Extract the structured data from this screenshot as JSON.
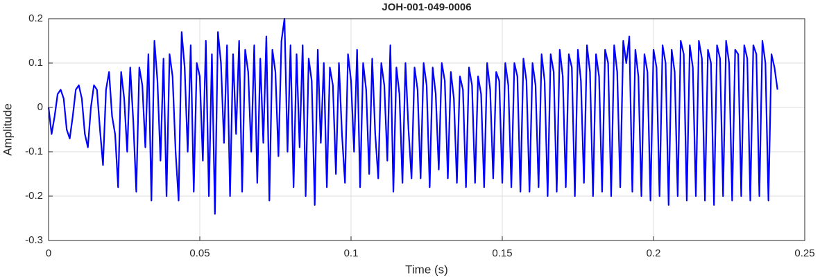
{
  "chart_data": {
    "type": "line",
    "title": "JOH-001-049-0006",
    "x_label": "Time (s)",
    "y_label": "Amplitude",
    "xlim": [
      0,
      0.25
    ],
    "xticks": [
      0,
      0.05,
      0.1,
      0.15,
      0.2,
      0.25
    ],
    "ylim": [
      -0.3,
      0.2
    ],
    "yticks": [
      -0.3,
      -0.2,
      -0.1,
      0,
      0.1,
      0.2
    ],
    "grid": true,
    "series": [
      {
        "color": "#0000ff",
        "x": [
          0,
          0.001,
          0.002,
          0.003,
          0.004,
          0.005,
          0.006,
          0.007,
          0.008,
          0.009,
          0.01,
          0.011,
          0.012,
          0.013,
          0.014,
          0.015,
          0.016,
          0.017,
          0.018,
          0.019,
          0.02,
          0.021,
          0.022,
          0.023,
          0.024,
          0.025,
          0.026,
          0.027,
          0.028,
          0.029,
          0.03,
          0.031,
          0.032,
          0.033,
          0.034,
          0.035,
          0.036,
          0.037,
          0.038,
          0.039,
          0.04,
          0.041,
          0.042,
          0.043,
          0.044,
          0.045,
          0.046,
          0.047,
          0.048,
          0.049,
          0.05,
          0.051,
          0.052,
          0.053,
          0.054,
          0.055,
          0.056,
          0.057,
          0.058,
          0.059,
          0.06,
          0.061,
          0.062,
          0.063,
          0.064,
          0.065,
          0.066,
          0.067,
          0.068,
          0.069,
          0.07,
          0.071,
          0.072,
          0.073,
          0.074,
          0.075,
          0.076,
          0.077,
          0.078,
          0.079,
          0.08,
          0.081,
          0.082,
          0.083,
          0.084,
          0.085,
          0.086,
          0.087,
          0.088,
          0.089,
          0.09,
          0.091,
          0.092,
          0.093,
          0.094,
          0.095,
          0.096,
          0.097,
          0.098,
          0.099,
          0.1,
          0.101,
          0.102,
          0.103,
          0.104,
          0.105,
          0.106,
          0.107,
          0.108,
          0.109,
          0.11,
          0.111,
          0.112,
          0.113,
          0.114,
          0.115,
          0.116,
          0.117,
          0.118,
          0.119,
          0.12,
          0.121,
          0.122,
          0.123,
          0.124,
          0.125,
          0.126,
          0.127,
          0.128,
          0.129,
          0.13,
          0.131,
          0.132,
          0.133,
          0.134,
          0.135,
          0.136,
          0.137,
          0.138,
          0.139,
          0.14,
          0.141,
          0.142,
          0.143,
          0.144,
          0.145,
          0.146,
          0.147,
          0.148,
          0.149,
          0.15,
          0.151,
          0.152,
          0.153,
          0.154,
          0.155,
          0.156,
          0.157,
          0.158,
          0.159,
          0.16,
          0.161,
          0.162,
          0.163,
          0.164,
          0.165,
          0.166,
          0.167,
          0.168,
          0.169,
          0.17,
          0.171,
          0.172,
          0.173,
          0.174,
          0.175,
          0.176,
          0.177,
          0.178,
          0.179,
          0.18,
          0.181,
          0.182,
          0.183,
          0.184,
          0.185,
          0.186,
          0.187,
          0.188,
          0.189,
          0.19,
          0.191,
          0.192,
          0.193,
          0.194,
          0.195,
          0.196,
          0.197,
          0.198,
          0.199,
          0.2,
          0.201,
          0.202,
          0.203,
          0.204,
          0.205,
          0.206,
          0.207,
          0.208,
          0.209,
          0.21,
          0.211,
          0.212,
          0.213,
          0.214,
          0.215,
          0.216,
          0.217,
          0.218,
          0.219,
          0.22,
          0.221,
          0.222,
          0.223,
          0.224,
          0.225,
          0.226,
          0.227,
          0.228,
          0.229,
          0.23,
          0.231,
          0.232,
          0.233,
          0.234,
          0.235,
          0.236,
          0.237,
          0.238,
          0.239,
          0.24,
          0.241
        ],
        "values": [
          0,
          -0.06,
          -0.02,
          0.03,
          0.04,
          0.02,
          -0.05,
          -0.07,
          -0.02,
          0.04,
          0.05,
          0.02,
          -0.06,
          -0.09,
          0.0,
          0.05,
          0.04,
          -0.05,
          -0.13,
          0.04,
          0.08,
          -0.02,
          -0.06,
          -0.18,
          0.08,
          0.02,
          -0.1,
          0.09,
          -0.03,
          -0.19,
          0.09,
          0.05,
          -0.09,
          0.12,
          -0.21,
          0.15,
          0.06,
          -0.12,
          0.11,
          -0.2,
          0.12,
          0.07,
          -0.1,
          -0.21,
          0.17,
          0.09,
          -0.1,
          0.14,
          -0.19,
          0.1,
          0.07,
          -0.12,
          0.15,
          -0.2,
          0.12,
          -0.24,
          0.17,
          0.1,
          -0.08,
          0.14,
          -0.2,
          0.12,
          -0.06,
          0.15,
          -0.19,
          0.13,
          0.08,
          -0.1,
          0.14,
          -0.17,
          0.11,
          -0.08,
          0.16,
          -0.21,
          0.13,
          0.08,
          -0.11,
          0.15,
          0.2,
          -0.1,
          0.14,
          -0.18,
          0.12,
          -0.09,
          0.14,
          -0.2,
          0.11,
          0.06,
          -0.22,
          0.13,
          -0.08,
          0.1,
          -0.18,
          0.09,
          0.05,
          -0.15,
          0.1,
          -0.06,
          -0.17,
          0.12,
          0.06,
          -0.1,
          0.13,
          -0.18,
          0.1,
          0.04,
          -0.15,
          0.11,
          -0.06,
          -0.16,
          0.1,
          0.05,
          -0.12,
          0.14,
          -0.19,
          0.09,
          0.03,
          -0.17,
          0.1,
          -0.05,
          -0.16,
          0.09,
          0.04,
          -0.16,
          0.1,
          0.05,
          -0.18,
          0.09,
          0.03,
          -0.14,
          0.1,
          0.06,
          -0.16,
          0.08,
          0.02,
          -0.17,
          0.07,
          0.04,
          -0.18,
          0.09,
          0.05,
          -0.17,
          0.07,
          0.03,
          -0.18,
          0.1,
          0.04,
          -0.16,
          0.08,
          0.06,
          -0.17,
          0.1,
          0.05,
          -0.18,
          0.1,
          0.07,
          -0.19,
          0.11,
          0.06,
          -0.19,
          0.1,
          0.05,
          -0.18,
          0.12,
          0.06,
          -0.2,
          0.12,
          0.08,
          -0.19,
          0.13,
          0.07,
          -0.18,
          0.12,
          0.09,
          -0.2,
          0.13,
          0.06,
          -0.17,
          0.14,
          0.08,
          -0.2,
          0.12,
          0.07,
          -0.19,
          0.13,
          0.1,
          -0.2,
          0.14,
          0.08,
          -0.18,
          0.15,
          0.1,
          0.16,
          -0.19,
          0.13,
          0.07,
          -0.2,
          0.12,
          0.08,
          -0.21,
          0.13,
          0.09,
          -0.2,
          0.14,
          0.1,
          -0.22,
          0.13,
          0.08,
          -0.2,
          0.15,
          0.12,
          -0.21,
          0.14,
          0.09,
          -0.2,
          0.15,
          0.11,
          -0.21,
          0.13,
          0.1,
          -0.22,
          0.14,
          0.11,
          -0.2,
          0.15,
          0.1,
          -0.21,
          0.13,
          0.12,
          -0.2,
          0.14,
          0.11,
          -0.21,
          0.14,
          0.12,
          -0.2,
          0.15,
          0.1,
          -0.21,
          0.12,
          0.09,
          0.04
        ]
      }
    ]
  }
}
